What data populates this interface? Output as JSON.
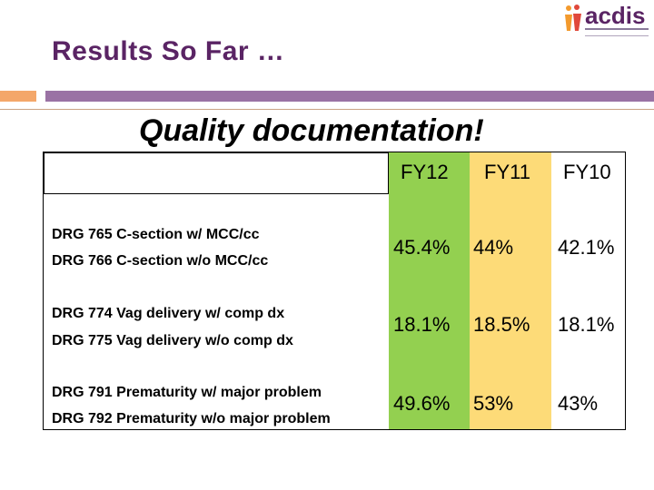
{
  "slide": {
    "title": "Results So Far …",
    "subtitle": "Quality documentation!"
  },
  "logo": {
    "text": "acdis",
    "icon": "people-figures-icon"
  },
  "colors": {
    "title": "#5a2464",
    "accent_orange": "#f4a76a",
    "accent_purple": "#9a72a4",
    "fy12_column": "#93d050",
    "fy11_column": "#fddb78"
  },
  "table": {
    "headers": [
      "",
      "FY12",
      "FY11",
      "FY10"
    ],
    "rows": [
      {
        "labels": [
          "DRG 765 C-section w/ MCC/cc",
          "DRG 766 C-section w/o MCC/cc"
        ],
        "fy12": "45.4%",
        "fy11": "44%",
        "fy10": "42.1%"
      },
      {
        "labels": [
          "DRG 774 Vag delivery w/ comp dx",
          "DRG 775 Vag delivery w/o comp dx"
        ],
        "fy12": "18.1%",
        "fy11": "18.5%",
        "fy10": "18.1%"
      },
      {
        "labels": [
          "DRG 791 Prematurity w/ major problem",
          "DRG 792 Prematurity w/o major problem"
        ],
        "fy12": "49.6%",
        "fy11": "53%",
        "fy10": "43%"
      }
    ]
  }
}
